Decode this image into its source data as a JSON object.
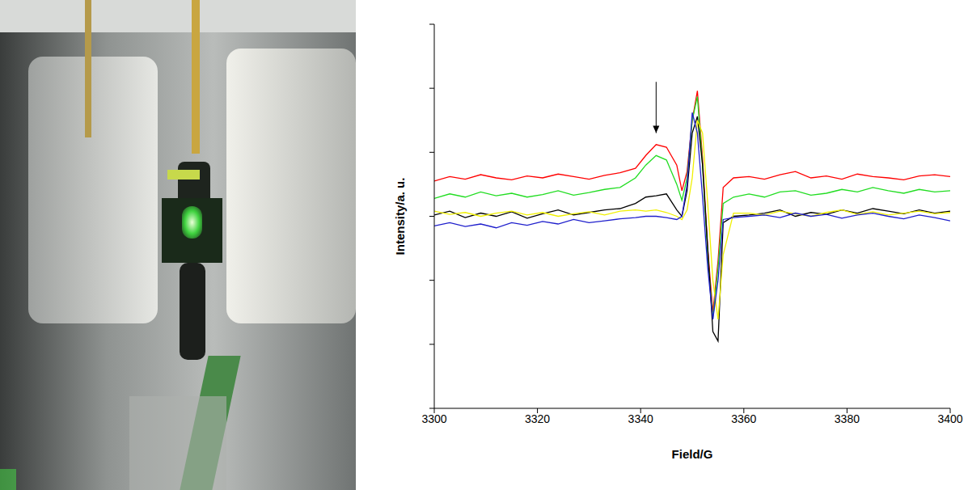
{
  "chart_data": {
    "type": "line",
    "x_label": "Field/G",
    "y_label": "Intensity/a. u.",
    "tick_labels": "x",
    "grid": false,
    "xlim": [
      3300,
      3400
    ],
    "xticks": [
      3300,
      3320,
      3340,
      3360,
      3380,
      3400
    ],
    "ylim": [
      0,
      6
    ],
    "yticks": [
      0,
      1,
      2,
      3,
      4,
      5,
      6
    ],
    "x": [
      3300,
      3303,
      3306,
      3309,
      3312,
      3315,
      3318,
      3321,
      3324,
      3327,
      3330,
      3333,
      3336,
      3339,
      3341,
      3343,
      3345,
      3347,
      3348,
      3349,
      3350,
      3351,
      3352,
      3353,
      3354,
      3355,
      3356,
      3358,
      3361,
      3364,
      3367,
      3370,
      3373,
      3376,
      3379,
      3382,
      3385,
      3388,
      3391,
      3394,
      3397,
      3400
    ],
    "series": [
      {
        "color": "#ff0000",
        "values": [
          3.55,
          3.62,
          3.58,
          3.65,
          3.6,
          3.57,
          3.63,
          3.6,
          3.66,
          3.62,
          3.58,
          3.64,
          3.68,
          3.75,
          3.95,
          4.12,
          4.08,
          3.8,
          3.4,
          3.7,
          4.5,
          4.96,
          3.9,
          2.5,
          1.5,
          2.3,
          3.45,
          3.6,
          3.62,
          3.58,
          3.65,
          3.7,
          3.6,
          3.63,
          3.58,
          3.66,
          3.62,
          3.6,
          3.57,
          3.63,
          3.65,
          3.62
        ]
      },
      {
        "color": "#22dd22",
        "values": [
          3.28,
          3.35,
          3.3,
          3.38,
          3.32,
          3.36,
          3.3,
          3.34,
          3.4,
          3.33,
          3.37,
          3.42,
          3.45,
          3.6,
          3.8,
          3.95,
          3.88,
          3.5,
          3.25,
          3.6,
          4.5,
          4.87,
          3.8,
          2.4,
          1.4,
          2.2,
          3.2,
          3.3,
          3.35,
          3.3,
          3.38,
          3.4,
          3.33,
          3.36,
          3.42,
          3.38,
          3.45,
          3.4,
          3.36,
          3.42,
          3.38,
          3.4
        ]
      },
      {
        "color": "#000000",
        "values": [
          3.02,
          3.08,
          2.98,
          3.05,
          3.0,
          3.07,
          2.97,
          3.04,
          3.1,
          3.02,
          3.06,
          3.1,
          3.12,
          3.2,
          3.3,
          3.32,
          3.35,
          3.1,
          3.0,
          3.4,
          4.3,
          4.56,
          3.8,
          2.5,
          1.2,
          1.05,
          2.9,
          3.0,
          3.02,
          3.05,
          3.1,
          3.0,
          3.06,
          3.03,
          3.1,
          3.05,
          3.12,
          3.08,
          3.04,
          3.1,
          3.05,
          3.08
        ]
      },
      {
        "color": "#f0f000",
        "values": [
          3.08,
          3.03,
          3.06,
          3.0,
          3.05,
          3.08,
          3.02,
          3.06,
          3.0,
          3.04,
          3.07,
          3.02,
          3.08,
          3.1,
          3.08,
          3.1,
          3.06,
          3.0,
          2.95,
          3.1,
          3.6,
          4.5,
          4.3,
          3.2,
          2.0,
          1.39,
          2.4,
          3.05,
          3.05,
          3.02,
          3.08,
          3.04,
          3.0,
          3.06,
          3.1,
          3.03,
          3.07,
          3.02,
          3.05,
          3.08,
          3.04,
          3.06
        ]
      },
      {
        "color": "#1f1fcc",
        "values": [
          2.85,
          2.9,
          2.84,
          2.88,
          2.82,
          2.9,
          2.86,
          2.92,
          2.88,
          2.95,
          2.9,
          2.93,
          2.96,
          2.98,
          3.0,
          3.0,
          2.98,
          2.95,
          3.0,
          3.5,
          4.62,
          4.3,
          3.3,
          2.2,
          1.39,
          2.0,
          2.95,
          2.98,
          3.0,
          3.02,
          2.98,
          3.05,
          3.0,
          3.03,
          2.97,
          3.02,
          3.05,
          3.0,
          2.96,
          3.02,
          2.98,
          2.93
        ]
      }
    ],
    "annotations": [
      {
        "type": "arrow",
        "x": 3343,
        "y": [
          5.1,
          4.3
        ]
      }
    ]
  }
}
